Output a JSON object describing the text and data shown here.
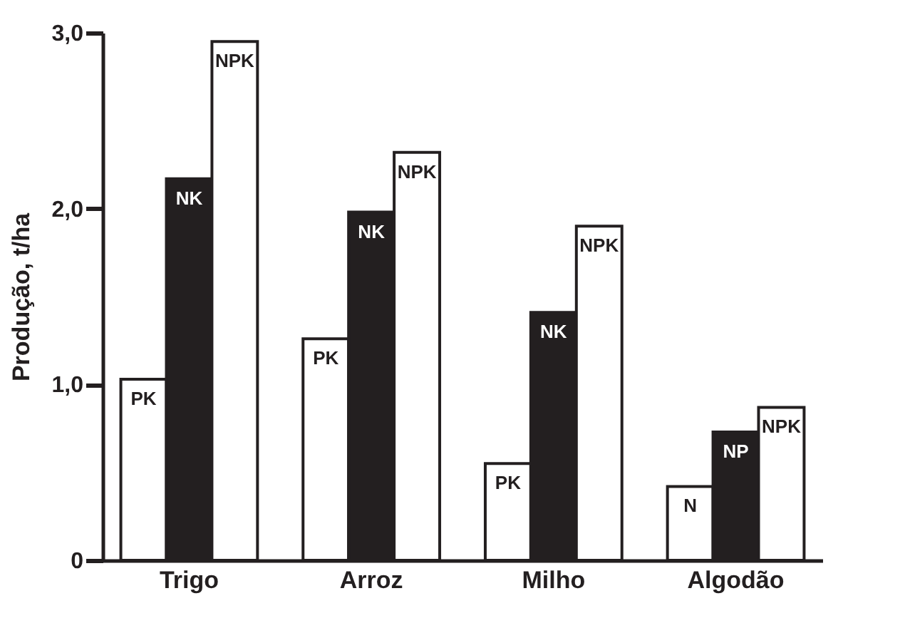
{
  "chart_data": {
    "type": "bar",
    "ylabel": "Produção, t/ha",
    "categories": [
      "Trigo",
      "Arroz",
      "Milho",
      "Algodão"
    ],
    "series": [
      {
        "color": "#ffffff",
        "values": [
          1.03,
          1.26,
          0.55,
          0.42
        ],
        "value_labels": [
          "PK",
          "PK",
          "PK",
          "N"
        ]
      },
      {
        "color": "#231f20",
        "values": [
          2.17,
          1.98,
          1.41,
          0.73
        ],
        "value_labels": [
          "NK",
          "NK",
          "NK",
          "NP"
        ]
      },
      {
        "color": "#ffffff",
        "values": [
          2.95,
          2.32,
          1.9,
          0.87
        ],
        "value_labels": [
          "NPK",
          "NPK",
          "NPK",
          "NPK"
        ]
      }
    ],
    "ylim": [
      0,
      3.0
    ],
    "yticks": [
      0,
      {
        "value": 1.0,
        "label": "1,0"
      },
      {
        "value": 2.0,
        "label": "2,0"
      },
      {
        "value": 3.0,
        "label": "3,0"
      }
    ],
    "grid": false
  }
}
